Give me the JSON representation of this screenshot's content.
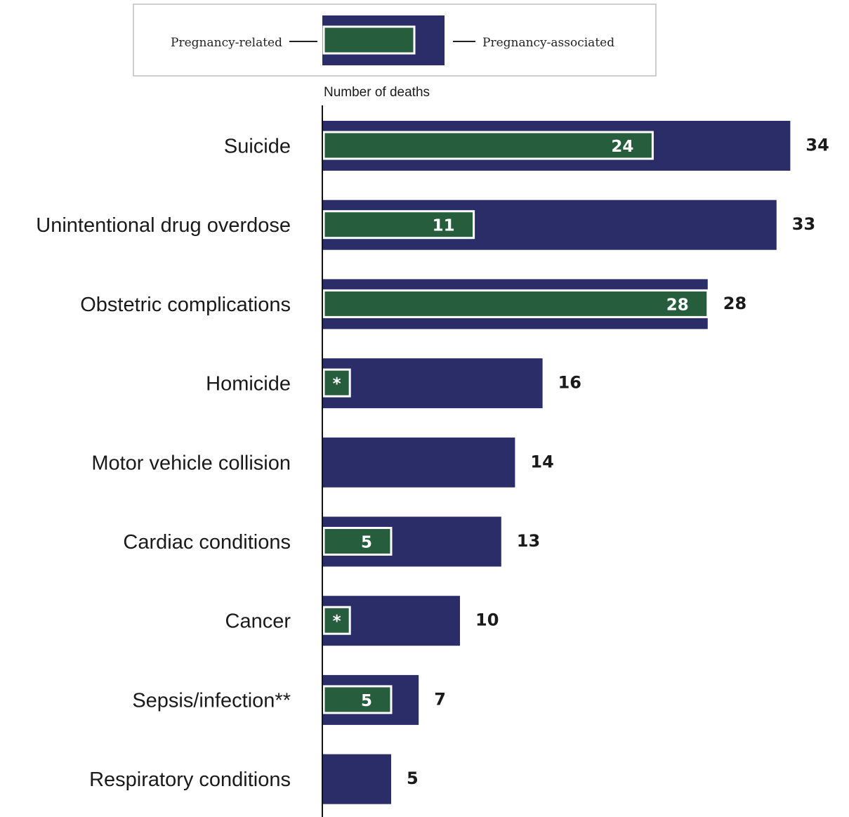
{
  "colors": {
    "pregnancy_associated": "#2a2d68",
    "pregnancy_related": "#265d3d",
    "outline": "#ffffff",
    "text": "#1a1a1a"
  },
  "legend": {
    "left_label": "Pregnancy-related",
    "right_label": "Pregnancy-associated"
  },
  "chart_data": {
    "type": "bar",
    "orientation": "horizontal",
    "xlabel": "Number of deaths",
    "xlim": [
      0,
      34
    ],
    "grid": false,
    "legend_position": "top",
    "categories": [
      "Suicide",
      "Unintentional drug overdose",
      "Obstetric complications",
      "Homicide",
      "Motor vehicle collision",
      "Cardiac conditions",
      "Cancer",
      "Sepsis/infection**",
      "Respiratory conditions"
    ],
    "series": [
      {
        "name": "Pregnancy-associated",
        "values": [
          34,
          33,
          28,
          16,
          14,
          13,
          10,
          7,
          5
        ],
        "labels": [
          "34",
          "33",
          "28",
          "16",
          "14",
          "13",
          "10",
          "7",
          "5"
        ]
      },
      {
        "name": "Pregnancy-related",
        "values": [
          24,
          11,
          28,
          2,
          null,
          5,
          2,
          5,
          null
        ],
        "labels": [
          "24",
          "11",
          "28",
          "*",
          "",
          "5",
          "*",
          "5",
          ""
        ]
      }
    ]
  }
}
